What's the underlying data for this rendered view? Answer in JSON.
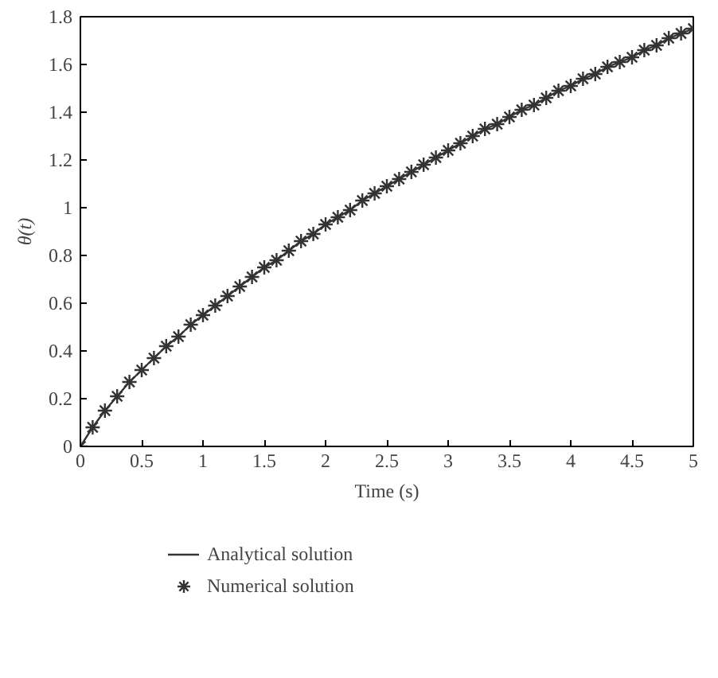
{
  "chart_data": {
    "type": "line",
    "xlabel": "Time (s)",
    "ylabel": "θ(t)",
    "x": [
      0,
      0.1,
      0.2,
      0.3,
      0.4,
      0.5,
      0.6,
      0.7,
      0.8,
      0.9,
      1.0,
      1.1,
      1.2,
      1.3,
      1.4,
      1.5,
      1.6,
      1.7,
      1.8,
      1.9,
      2.0,
      2.1,
      2.2,
      2.3,
      2.4,
      2.5,
      2.6,
      2.7,
      2.8,
      2.9,
      3.0,
      3.1,
      3.2,
      3.3,
      3.4,
      3.5,
      3.6,
      3.7,
      3.8,
      3.9,
      4.0,
      4.1,
      4.2,
      4.3,
      4.4,
      4.5,
      4.6,
      4.7,
      4.8,
      4.9,
      5.0
    ],
    "series": [
      {
        "name": "Analytical solution",
        "color": "#333333",
        "line_style": "solid",
        "values": [
          0,
          0.08,
          0.15,
          0.21,
          0.27,
          0.32,
          0.37,
          0.42,
          0.46,
          0.51,
          0.55,
          0.59,
          0.63,
          0.67,
          0.71,
          0.75,
          0.78,
          0.82,
          0.86,
          0.89,
          0.93,
          0.96,
          0.99,
          1.03,
          1.06,
          1.09,
          1.12,
          1.15,
          1.18,
          1.21,
          1.24,
          1.27,
          1.3,
          1.33,
          1.35,
          1.38,
          1.41,
          1.43,
          1.46,
          1.49,
          1.51,
          1.54,
          1.56,
          1.59,
          1.61,
          1.63,
          1.66,
          1.68,
          1.71,
          1.73,
          1.75
        ]
      },
      {
        "name": "Numerical solution",
        "type": "scatter",
        "color": "#333333",
        "marker": "cross",
        "values": [
          0,
          0.08,
          0.15,
          0.21,
          0.27,
          0.32,
          0.37,
          0.42,
          0.46,
          0.51,
          0.55,
          0.59,
          0.63,
          0.67,
          0.71,
          0.75,
          0.78,
          0.82,
          0.86,
          0.89,
          0.93,
          0.96,
          0.99,
          1.03,
          1.06,
          1.09,
          1.12,
          1.15,
          1.18,
          1.21,
          1.24,
          1.27,
          1.3,
          1.33,
          1.35,
          1.38,
          1.41,
          1.43,
          1.46,
          1.49,
          1.51,
          1.54,
          1.56,
          1.59,
          1.61,
          1.63,
          1.66,
          1.68,
          1.71,
          1.73,
          1.75
        ]
      }
    ],
    "xlim": [
      0,
      5
    ],
    "xticks": [
      0,
      0.5,
      1,
      1.5,
      2,
      2.5,
      3,
      3.5,
      4,
      4.5,
      5
    ],
    "ylim": [
      0,
      1.8
    ],
    "yticks": [
      0,
      0.2,
      0.4,
      0.6,
      0.8,
      1,
      1.2,
      1.4,
      1.6,
      1.8
    ],
    "grid": false,
    "legend": "bottom"
  }
}
